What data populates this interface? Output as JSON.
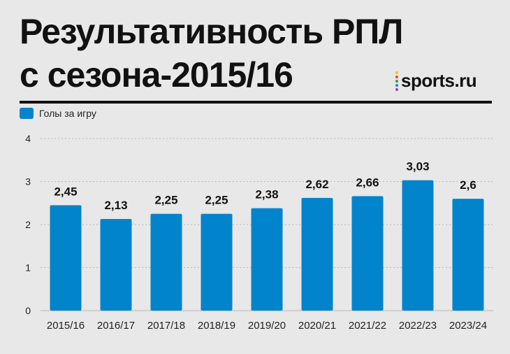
{
  "title": {
    "line1": "Результативность РПЛ",
    "line2": "с сезона-2015/16"
  },
  "logo": {
    "text": "sports.ru",
    "dot_colors": [
      "#f4c20d",
      "#e8453c",
      "#3b9b3b",
      "#2a7fd4",
      "#8e44ad"
    ]
  },
  "colors": {
    "bar": "#0284cc",
    "grid": "#b8b8b8",
    "text": "#111111"
  },
  "chart_data": {
    "type": "bar",
    "categories": [
      "2015/16",
      "2016/17",
      "2017/18",
      "2018/19",
      "2019/20",
      "2020/21",
      "2021/22",
      "2022/23",
      "2023/24"
    ],
    "series": [
      {
        "name": "Голы за игру",
        "values": [
          2.45,
          2.13,
          2.25,
          2.25,
          2.38,
          2.62,
          2.66,
          3.03,
          2.6
        ]
      }
    ],
    "value_labels": [
      "2,45",
      "2,13",
      "2,25",
      "2,25",
      "2,38",
      "2,62",
      "2,66",
      "3,03",
      "2,6"
    ],
    "y_ticks": [
      "0",
      "1",
      "2",
      "3",
      "4"
    ],
    "ylim": [
      0,
      4
    ],
    "grid": true,
    "legend_position": "top-left"
  }
}
